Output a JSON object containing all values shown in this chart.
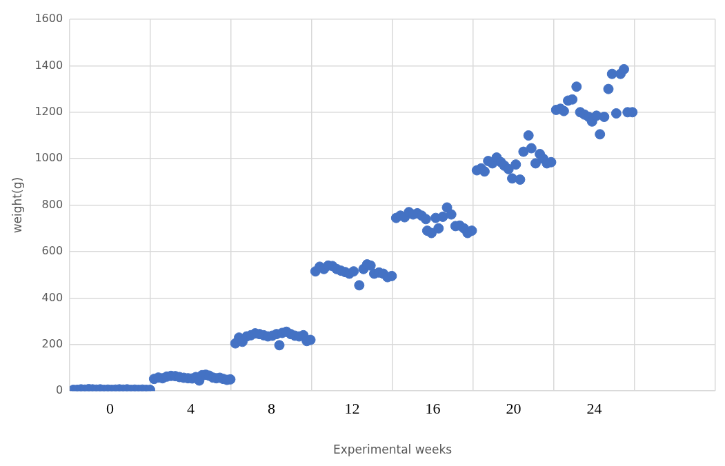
{
  "chart_data": {
    "type": "scatter",
    "xlabel": "Experimental weeks",
    "ylabel": "weight(g)",
    "marker": "circle",
    "grid": true,
    "legend": false,
    "xlim": [
      -2,
      30
    ],
    "xticks": [
      {
        "value": -2,
        "label": null
      },
      {
        "value": 0,
        "label": "0"
      },
      {
        "value": 2,
        "label": null
      },
      {
        "value": 4,
        "label": "4"
      },
      {
        "value": 6,
        "label": null
      },
      {
        "value": 8,
        "label": "8"
      },
      {
        "value": 10,
        "label": null
      },
      {
        "value": 12,
        "label": "12"
      },
      {
        "value": 14,
        "label": null
      },
      {
        "value": 16,
        "label": "16"
      },
      {
        "value": 18,
        "label": null
      },
      {
        "value": 20,
        "label": "20"
      },
      {
        "value": 22,
        "label": null
      },
      {
        "value": 24,
        "label": "24"
      },
      {
        "value": 26,
        "label": null
      },
      {
        "value": 30,
        "label": null
      }
    ],
    "ylim": [
      0,
      1600
    ],
    "yticks": [
      0,
      200,
      400,
      600,
      800,
      1000,
      1200,
      1400,
      1600
    ],
    "series": [
      {
        "color": "#4472c4",
        "x": [
          -1.82,
          -1.63,
          -1.44,
          -1.25,
          -1.06,
          -0.87,
          -0.68,
          -0.49,
          -0.3,
          -0.11,
          0.08,
          0.27,
          0.46,
          0.65,
          0.84,
          1.03,
          1.22,
          1.41,
          1.6,
          1.79,
          1.98,
          2.18,
          2.39,
          2.6,
          2.81,
          3.02,
          3.23,
          3.44,
          3.65,
          3.86,
          4.07,
          4.25,
          4.42,
          4.56,
          4.74,
          4.91,
          5.09,
          5.26,
          5.44,
          5.61,
          5.79,
          5.96,
          6.21,
          6.39,
          6.56,
          6.77,
          6.98,
          7.19,
          7.4,
          7.61,
          7.82,
          8.04,
          8.25,
          8.39,
          8.53,
          8.74,
          8.95,
          9.16,
          9.37,
          9.58,
          9.75,
          9.93,
          10.18,
          10.39,
          10.6,
          10.81,
          11.02,
          11.23,
          11.44,
          11.65,
          11.86,
          12.07,
          12.35,
          12.56,
          12.74,
          12.91,
          13.09,
          13.33,
          13.54,
          13.75,
          13.96,
          14.18,
          14.39,
          14.6,
          14.81,
          15.02,
          15.23,
          15.44,
          15.65,
          15.72,
          15.93,
          16.14,
          16.28,
          16.49,
          16.7,
          16.91,
          17.12,
          17.33,
          17.54,
          17.72,
          17.93,
          18.18,
          18.39,
          18.56,
          18.74,
          18.95,
          19.16,
          19.37,
          19.54,
          19.75,
          19.93,
          20.11,
          20.32,
          20.49,
          20.74,
          20.88,
          21.09,
          21.3,
          21.47,
          21.65,
          21.86,
          22.11,
          22.32,
          22.49,
          22.7,
          22.91,
          23.12,
          23.3,
          23.51,
          23.72,
          23.89,
          24.11,
          24.28,
          24.49,
          24.7,
          24.88,
          25.09,
          25.3,
          25.47,
          25.65,
          25.89
        ],
        "values": [
          5,
          5,
          7,
          6,
          8,
          7,
          6,
          7,
          5,
          6,
          5,
          6,
          7,
          6,
          7,
          5,
          6,
          5,
          6,
          5,
          5,
          52,
          58,
          55,
          62,
          65,
          64,
          60,
          57,
          55,
          54,
          60,
          45,
          68,
          70,
          66,
          58,
          55,
          57,
          52,
          48,
          50,
          205,
          230,
          212,
          235,
          240,
          248,
          245,
          240,
          235,
          238,
          245,
          197,
          250,
          255,
          245,
          238,
          235,
          240,
          215,
          220,
          515,
          535,
          525,
          540,
          538,
          525,
          518,
          512,
          505,
          515,
          455,
          525,
          545,
          540,
          505,
          510,
          505,
          490,
          495,
          745,
          755,
          748,
          770,
          760,
          765,
          755,
          740,
          690,
          680,
          745,
          700,
          750,
          790,
          760,
          710,
          712,
          700,
          680,
          690,
          950,
          958,
          945,
          990,
          980,
          1005,
          985,
          970,
          955,
          915,
          975,
          910,
          1030,
          1100,
          1045,
          980,
          1020,
          1000,
          980,
          985,
          1210,
          1215,
          1205,
          1250,
          1255,
          1310,
          1200,
          1190,
          1180,
          1160,
          1185,
          1105,
          1180,
          1300,
          1365,
          1195,
          1365,
          1385,
          1200,
          1200
        ]
      }
    ]
  }
}
